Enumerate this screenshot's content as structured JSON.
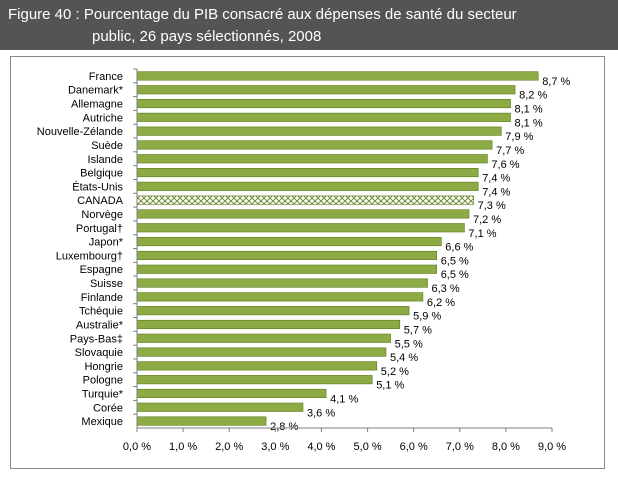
{
  "figure": {
    "title_line1": "Figure 40 : Pourcentage du PIB consacré aux dépenses de santé du secteur",
    "title_line2": "public, 26 pays sélectionnés, 2008"
  },
  "colors": {
    "title_bg": "#545454",
    "bar_fill": "#8cab45",
    "bar_stroke": "#5c7a20",
    "highlight_pattern": "#6f8f35",
    "axis": "#7f7f7f"
  },
  "chart_data": {
    "type": "bar",
    "orientation": "horizontal",
    "title": "Figure 40 : Pourcentage du PIB consacré aux dépenses de santé du secteur public, 26 pays sélectionnés, 2008",
    "categories": [
      "France",
      "Danemark*",
      "Allemagne",
      "Autriche",
      "Nouvelle-Zélande",
      "Suède",
      "Islande",
      "Belgique",
      "États-Unis",
      "CANADA",
      "Norvège",
      "Portugal†",
      "Japon*",
      "Luxembourg†",
      "Espagne",
      "Suisse",
      "Finlande",
      "Tchéquie",
      "Australie*",
      "Pays-Bas‡",
      "Slovaquie",
      "Hongrie",
      "Pologne",
      "Turquie*",
      "Corée",
      "Mexique"
    ],
    "values": [
      8.7,
      8.2,
      8.1,
      8.1,
      7.9,
      7.7,
      7.6,
      7.4,
      7.4,
      7.3,
      7.2,
      7.1,
      6.6,
      6.5,
      6.5,
      6.3,
      6.2,
      5.9,
      5.7,
      5.5,
      5.4,
      5.2,
      5.1,
      4.1,
      3.6,
      2.8
    ],
    "value_labels": [
      "8,7 %",
      "8,2 %",
      "8,1 %",
      "8,1 %",
      "7,9 %",
      "7,7 %",
      "7,6 %",
      "7,4 %",
      "7,4 %",
      "7,3 %",
      "7,2 %",
      "7,1 %",
      "6,6 %",
      "6,5 %",
      "6,5 %",
      "6,3 %",
      "6,2 %",
      "5,9 %",
      "5,7 %",
      "5,5 %",
      "5,4 %",
      "5,2 %",
      "5,1 %",
      "4,1 %",
      "3,6 %",
      "2,8 %"
    ],
    "highlight": "CANADA",
    "xlim": [
      0,
      9
    ],
    "x_ticks": [
      0,
      1,
      2,
      3,
      4,
      5,
      6,
      7,
      8,
      9
    ],
    "x_tick_labels": [
      "0,0 %",
      "1,0 %",
      "2,0 %",
      "3,0 %",
      "4,0 %",
      "5,0 %",
      "6,0 %",
      "7,0 %",
      "8,0 %",
      "9,0 %"
    ],
    "grid": false,
    "legend": "none"
  }
}
